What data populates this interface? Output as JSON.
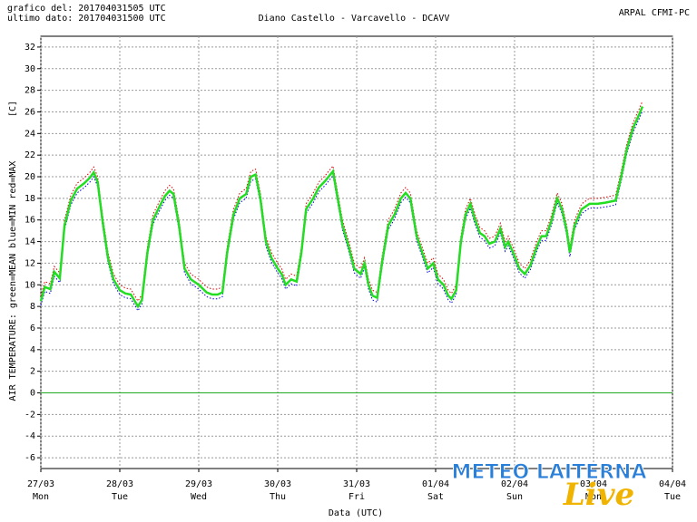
{
  "chart_data": {
    "type": "line",
    "header_left": [
      "grafico del: 201704031505 UTC",
      "ultimo dato: 201704031500 UTC"
    ],
    "title": "Diano Castello - Varcavello - DCAVV",
    "header_right": "ARPAL CFMI-PC",
    "ylabel": "AIR TEMPERATURE: green=MEAN  blue=MIN  red=MAX",
    "yunit": "[C]",
    "xlabel": "Data (UTC)",
    "watermark": [
      "METEO LAITERNA",
      "Live"
    ],
    "xlim": [
      0,
      8
    ],
    "ylim": [
      -7,
      33
    ],
    "xticks": [
      {
        "value": 0,
        "label": "27/03"
      },
      {
        "value": 1,
        "label": "28/03"
      },
      {
        "value": 2,
        "label": "29/03"
      },
      {
        "value": 3,
        "label": "30/03"
      },
      {
        "value": 4,
        "label": "31/03"
      },
      {
        "value": 5,
        "label": "01/04"
      },
      {
        "value": 6,
        "label": "02/04"
      },
      {
        "value": 7,
        "label": "03/04"
      },
      {
        "value": 8,
        "label": "04/04"
      }
    ],
    "xtick_days": [
      "Mon",
      "Tue",
      "Wed",
      "Thu",
      "Fri",
      "Sat",
      "Sun",
      "Mon",
      "Tue"
    ],
    "yticks": [
      -6,
      -4,
      -2,
      0,
      2,
      4,
      6,
      8,
      10,
      12,
      14,
      16,
      18,
      20,
      22,
      24,
      26,
      28,
      30,
      32
    ],
    "grid": true,
    "hline": {
      "value": 0,
      "color": "#22aa22"
    },
    "x": [
      0.0,
      0.05,
      0.12,
      0.17,
      0.24,
      0.3,
      0.38,
      0.46,
      0.55,
      0.62,
      0.67,
      0.72,
      0.78,
      0.85,
      0.92,
      1.0,
      1.07,
      1.14,
      1.23,
      1.28,
      1.35,
      1.42,
      1.5,
      1.57,
      1.63,
      1.68,
      1.75,
      1.82,
      1.9,
      2.0,
      2.1,
      2.17,
      2.24,
      2.3,
      2.36,
      2.44,
      2.52,
      2.6,
      2.66,
      2.72,
      2.78,
      2.85,
      2.92,
      3.0,
      3.05,
      3.1,
      3.17,
      3.24,
      3.3,
      3.36,
      3.45,
      3.52,
      3.6,
      3.7,
      3.76,
      3.82,
      3.9,
      3.97,
      4.05,
      4.1,
      4.15,
      4.2,
      4.26,
      4.32,
      4.4,
      4.48,
      4.56,
      4.62,
      4.68,
      4.76,
      4.83,
      4.9,
      4.97,
      5.03,
      5.1,
      5.16,
      5.2,
      5.26,
      5.32,
      5.38,
      5.44,
      5.5,
      5.56,
      5.62,
      5.68,
      5.75,
      5.82,
      5.88,
      5.92,
      5.98,
      6.06,
      6.13,
      6.2,
      6.28,
      6.34,
      6.4,
      6.47,
      6.54,
      6.6,
      6.66,
      6.7,
      6.76,
      6.85,
      6.95,
      7.05,
      7.15,
      7.28,
      7.35,
      7.42,
      7.5,
      7.58,
      7.62
    ],
    "series": [
      {
        "name": "MAX",
        "color": "#dd0000",
        "dash": true,
        "width": 1,
        "values": [
          9.0,
          10.3,
          10.1,
          11.7,
          11.1,
          16.0,
          18.3,
          19.4,
          19.9,
          20.4,
          20.9,
          20.0,
          16.5,
          13.0,
          11.0,
          10.0,
          9.7,
          9.6,
          8.5,
          9.1,
          13.5,
          16.5,
          17.7,
          18.7,
          19.2,
          18.9,
          16.0,
          12.0,
          11.0,
          10.5,
          9.8,
          9.6,
          9.6,
          9.8,
          13.5,
          17.0,
          18.5,
          18.9,
          20.5,
          20.7,
          18.5,
          14.5,
          13.0,
          12.0,
          11.5,
          10.5,
          11.0,
          10.8,
          13.5,
          17.5,
          18.5,
          19.5,
          20.1,
          21.0,
          18.5,
          16.0,
          14.0,
          12.0,
          11.5,
          12.5,
          10.5,
          9.5,
          9.3,
          12.5,
          16.0,
          17.0,
          18.5,
          19.0,
          18.5,
          15.0,
          13.5,
          12.0,
          12.5,
          11.0,
          10.5,
          9.5,
          9.2,
          10.0,
          14.5,
          17.0,
          18.0,
          16.5,
          15.3,
          15.0,
          14.3,
          14.5,
          15.7,
          14.0,
          14.5,
          13.5,
          12.0,
          11.5,
          12.3,
          14.0,
          15.0,
          15.0,
          16.5,
          18.5,
          17.5,
          15.5,
          13.5,
          16.0,
          17.5,
          18.0,
          18.0,
          18.1,
          18.3,
          20.5,
          23.0,
          25.0,
          26.3,
          27.0
        ]
      },
      {
        "name": "MIN",
        "color": "#0000dd",
        "dash": true,
        "width": 1,
        "values": [
          8.1,
          9.4,
          9.2,
          10.8,
          10.2,
          15.1,
          17.4,
          18.5,
          19.0,
          19.5,
          20.0,
          19.1,
          15.6,
          12.1,
          10.1,
          9.1,
          8.8,
          8.7,
          7.6,
          8.2,
          12.6,
          15.6,
          16.8,
          17.8,
          18.3,
          18.0,
          15.1,
          11.1,
          10.1,
          9.6,
          8.9,
          8.7,
          8.7,
          8.9,
          12.6,
          16.1,
          17.6,
          18.0,
          19.6,
          19.8,
          17.6,
          13.6,
          12.1,
          11.1,
          10.6,
          9.6,
          10.1,
          9.9,
          12.6,
          16.6,
          17.6,
          18.6,
          19.2,
          20.1,
          17.6,
          15.1,
          13.1,
          11.1,
          10.6,
          11.6,
          9.6,
          8.6,
          8.4,
          11.6,
          15.1,
          16.1,
          17.6,
          18.1,
          17.6,
          14.1,
          12.6,
          11.1,
          11.6,
          10.1,
          9.6,
          8.6,
          8.3,
          9.1,
          13.6,
          16.1,
          17.1,
          15.6,
          14.4,
          14.1,
          13.4,
          13.6,
          14.8,
          13.1,
          13.6,
          12.6,
          11.1,
          10.6,
          11.4,
          13.1,
          14.1,
          14.1,
          15.6,
          17.6,
          16.6,
          14.6,
          12.6,
          15.1,
          16.6,
          17.1,
          17.1,
          17.2,
          17.4,
          19.6,
          22.1,
          24.1,
          25.4,
          26.1
        ]
      },
      {
        "name": "MEAN",
        "color": "#22dd22",
        "dash": false,
        "width": 2.5,
        "values": [
          8.5,
          9.8,
          9.6,
          11.2,
          10.6,
          15.5,
          17.8,
          18.9,
          19.4,
          19.9,
          20.4,
          19.5,
          16,
          12.5,
          10.5,
          9.5,
          9.2,
          9.1,
          8.0,
          8.6,
          13,
          16,
          17.2,
          18.2,
          18.7,
          18.4,
          15.5,
          11.5,
          10.5,
          10,
          9.3,
          9.1,
          9.1,
          9.3,
          13,
          16.5,
          18,
          18.4,
          20,
          20.2,
          18,
          14,
          12.5,
          11.5,
          11,
          10,
          10.5,
          10.3,
          13,
          17,
          18,
          19,
          19.6,
          20.5,
          18,
          15.5,
          13.5,
          11.5,
          11,
          12,
          10,
          9,
          8.8,
          12,
          15.5,
          16.5,
          18,
          18.5,
          18,
          14.5,
          13,
          11.5,
          12,
          10.5,
          10,
          9,
          8.7,
          9.5,
          14,
          16.5,
          17.5,
          16,
          14.8,
          14.5,
          13.8,
          14,
          15.2,
          13.5,
          14,
          13,
          11.5,
          11,
          11.8,
          13.5,
          14.5,
          14.5,
          16,
          18,
          17,
          15,
          13,
          15.5,
          17,
          17.5,
          17.5,
          17.6,
          17.8,
          20,
          22.5,
          24.5,
          25.8,
          26.5
        ]
      }
    ]
  }
}
